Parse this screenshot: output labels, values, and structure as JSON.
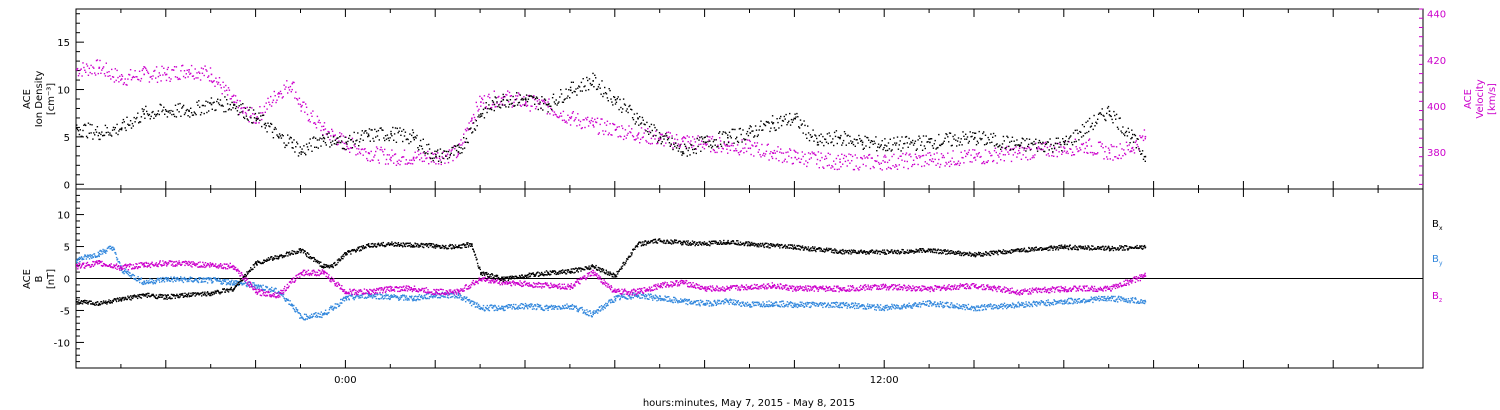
{
  "chart_data": [
    {
      "type": "scatter",
      "panel": "top",
      "title": "",
      "ylabel_left": [
        "ACE",
        "Ion Density",
        "[cm⁻³]"
      ],
      "ylabel_right": [
        "ACE",
        "Velocity",
        "[km/s]"
      ],
      "left_yticks": [
        "0",
        "5",
        "10",
        "15"
      ],
      "right_yticks": [
        "380",
        "400",
        "420",
        "440"
      ],
      "ylim_left": [
        -0.5,
        18.5
      ],
      "ylim_right": [
        364,
        442
      ],
      "x_hours": [
        -6,
        24
      ],
      "series": [
        {
          "name": "",
          "axis": "left",
          "color": "#000000",
          "x": [
            -6,
            -5.5,
            -5,
            -4.5,
            -4,
            -3.5,
            -3,
            -2.5,
            -2,
            -1.8,
            -1.5,
            -1.2,
            -1,
            -0.5,
            -0.2,
            0,
            0.5,
            1,
            1.5,
            2,
            2.5,
            3,
            3.3,
            3.5,
            4,
            4.5,
            5,
            5.5,
            6,
            6.5,
            7,
            7.5,
            8,
            8.5,
            9,
            9.5,
            10,
            10.5,
            11,
            11.5,
            12,
            13,
            14,
            15,
            16,
            17,
            17.5,
            17.8
          ],
          "y": [
            6,
            5.5,
            6,
            7.5,
            7.8,
            7.8,
            8.5,
            8.5,
            7,
            6.5,
            5,
            4.5,
            3.5,
            5,
            4.5,
            4.5,
            5.2,
            5.4,
            5,
            3,
            3.5,
            7.5,
            8.5,
            9,
            9,
            8.5,
            10,
            11,
            9,
            7,
            5,
            3.5,
            4.5,
            5,
            5.5,
            6.5,
            7,
            4.5,
            5,
            4.5,
            4.2,
            4.5,
            5,
            4.2,
            4.3,
            7.8,
            5,
            3
          ]
        },
        {
          "name": "",
          "axis": "right",
          "color": "#cc00cc",
          "x": [
            -6,
            -5.5,
            -5,
            -4.5,
            -4,
            -3.5,
            -3,
            -2.5,
            -2.3,
            -2,
            -1.5,
            -1.2,
            -1,
            -0.5,
            0,
            0.5,
            1,
            1.5,
            2,
            2.5,
            2.8,
            3,
            3.5,
            4,
            4.5,
            5,
            5.5,
            6,
            6.5,
            7,
            7.5,
            8,
            8.5,
            9,
            9.5,
            10,
            11,
            12,
            13,
            14,
            15,
            16,
            16.5,
            17,
            17.5,
            17.8
          ],
          "y": [
            416,
            417,
            412,
            414,
            414,
            416,
            414,
            402,
            398,
            395,
            406,
            410,
            400,
            390,
            384,
            380,
            378,
            378,
            378,
            380,
            395,
            402,
            404,
            402,
            400,
            395,
            392,
            390,
            388,
            386,
            385,
            384,
            383,
            382,
            380,
            378,
            376,
            376,
            377,
            378,
            380,
            382,
            383,
            380,
            382,
            387
          ]
        }
      ]
    },
    {
      "type": "scatter",
      "panel": "bottom",
      "title": "",
      "ylabel_left": [
        "ACE",
        "B",
        "[nT]"
      ],
      "left_yticks": [
        "-10",
        "-5",
        "0",
        "5",
        "10"
      ],
      "ylim_left": [
        -14,
        14
      ],
      "zero_line": true,
      "xlabel": "hours:minutes, May  7, 2015 - May  8, 2015",
      "x_ticks": [
        {
          "hour": 0,
          "label": "0:00"
        },
        {
          "hour": 12,
          "label": "12:00"
        }
      ],
      "x_hours": [
        -6,
        24
      ],
      "series": [
        {
          "name": "Bx",
          "label_main": "B",
          "label_sub": "x",
          "color": "#000000",
          "x": [
            -6,
            -5.5,
            -5,
            -4.5,
            -4,
            -3,
            -2.5,
            -2,
            -1.5,
            -1,
            -0.5,
            -0.3,
            0,
            0.5,
            1,
            1.5,
            2,
            2.5,
            2.8,
            3,
            3.5,
            4,
            4.5,
            5,
            5.5,
            6,
            6.5,
            7,
            7.5,
            8,
            8.5,
            9,
            9.5,
            10,
            11,
            12,
            13,
            14,
            15,
            16,
            17,
            17.8
          ],
          "y": [
            -3.5,
            -3.8,
            -3.2,
            -2.5,
            -2.8,
            -2.2,
            -1.5,
            2.5,
            3.5,
            4.5,
            2,
            2,
            4,
            5.2,
            5.5,
            5.3,
            5.2,
            5,
            5.5,
            1,
            0,
            0.5,
            1,
            1.2,
            2,
            0.5,
            5.5,
            6,
            5.7,
            5.5,
            5.8,
            5.5,
            5.2,
            5,
            4.3,
            4.2,
            4.5,
            3.8,
            4.5,
            5,
            4.8,
            5
          ]
        },
        {
          "name": "By",
          "label_main": "B",
          "label_sub": "y",
          "color": "#3388dd",
          "x": [
            -6,
            -5.5,
            -5.2,
            -5,
            -4.5,
            -4,
            -3,
            -2.5,
            -2,
            -1.5,
            -1.2,
            -1,
            -0.5,
            0,
            0.5,
            1,
            1.5,
            2,
            2.5,
            3,
            3.5,
            4,
            4.5,
            5,
            5.5,
            6,
            6.5,
            7,
            7.5,
            8,
            8.5,
            9,
            9.5,
            10,
            11,
            12,
            13,
            14,
            15,
            16,
            17,
            17.8
          ],
          "y": [
            3,
            4,
            5,
            1.5,
            -0.5,
            0,
            -0.2,
            -0.5,
            -1,
            -2,
            -4,
            -6,
            -5.5,
            -3,
            -2.5,
            -2.8,
            -3,
            -2.5,
            -2.5,
            -4.5,
            -4.5,
            -4.2,
            -4.5,
            -4.2,
            -5.5,
            -3,
            -2.5,
            -3,
            -3.5,
            -3.8,
            -3.5,
            -4,
            -3.8,
            -4,
            -4,
            -4.5,
            -3.8,
            -4.5,
            -4,
            -3.5,
            -3,
            -3.5
          ]
        },
        {
          "name": "Bz",
          "label_main": "B",
          "label_sub": "z",
          "color": "#cc00cc",
          "x": [
            -6,
            -5.5,
            -5,
            -4.5,
            -4,
            -3,
            -2.5,
            -2,
            -1.5,
            -1,
            -0.5,
            0,
            0.5,
            1,
            1.5,
            2,
            2.5,
            3,
            3.5,
            4,
            4.5,
            5,
            5.5,
            6,
            6.5,
            7,
            7.5,
            8,
            8.5,
            9,
            9.5,
            10,
            11,
            12,
            13,
            14,
            15,
            16,
            17,
            17.8
          ],
          "y": [
            2,
            2.5,
            1.8,
            2.2,
            2.5,
            2.2,
            2,
            -2,
            -2.5,
            1,
            1,
            -2,
            -2,
            -1.5,
            -1.5,
            -2,
            -2,
            0,
            -0.5,
            -0.8,
            -1,
            -1.2,
            1,
            -2,
            -2,
            -1,
            -0.5,
            -1.5,
            -1.5,
            -1.2,
            -1,
            -1.5,
            -1.5,
            -1.2,
            -1.5,
            -1,
            -2,
            -1.5,
            -1.5,
            0.5
          ]
        }
      ]
    }
  ]
}
